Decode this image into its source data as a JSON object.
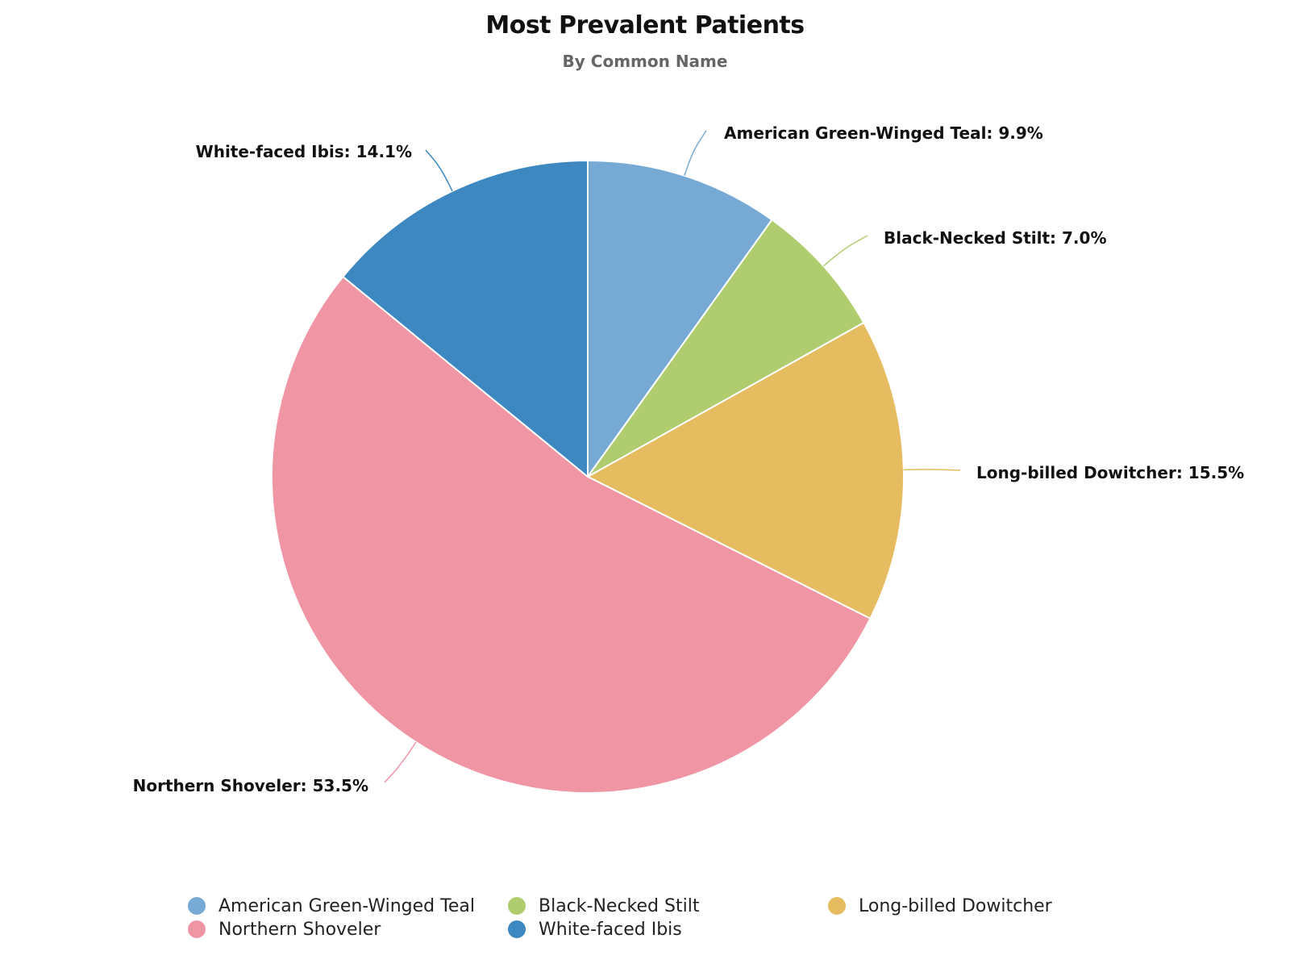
{
  "chart_data": {
    "type": "pie",
    "title": "Most Prevalent Patients",
    "subtitle": "By Common Name",
    "slices": [
      {
        "name": "American Green-Winged Teal",
        "value": 9.9,
        "label": "American Green-Winged Teal: 9.9%",
        "color": "#76aad4"
      },
      {
        "name": "Black-Necked Stilt",
        "value": 7.0,
        "label": "Black-Necked Stilt: 7.0%",
        "color": "#afcd6e"
      },
      {
        "name": "Long-billed Dowitcher",
        "value": 15.5,
        "label": "Long-billed Dowitcher: 15.5%",
        "color": "#e5bc60"
      },
      {
        "name": "Northern Shoveler",
        "value": 53.5,
        "label": "Northern Shoveler: 53.5%",
        "color": "#f095a4"
      },
      {
        "name": "White-faced Ibis",
        "value": 14.1,
        "label": "White-faced Ibis: 14.1%",
        "color": "#3d88c0"
      }
    ],
    "legend": {
      "placement": "bottom",
      "items": [
        "American Green-Winged Teal",
        "Black-Necked Stilt",
        "Long-billed Dowitcher",
        "Northern Shoveler",
        "White-faced Ibis"
      ]
    }
  }
}
